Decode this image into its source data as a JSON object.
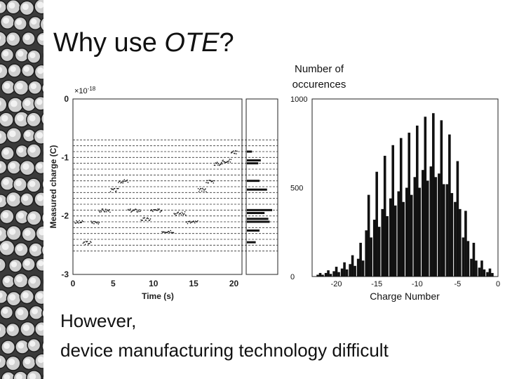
{
  "slide": {
    "title_prefix": "Why use ",
    "title_em": "OTE",
    "title_suffix": "?",
    "footer_line1": "However,",
    "footer_line2": "device manufacturing technology difficult"
  },
  "chart_data": [
    {
      "type": "scatter",
      "xlabel": "Time (s)",
      "ylabel": "Measured charge (C)",
      "y_multiplier": "×10",
      "y_multiplier_exp": "-18",
      "xlim": [
        0,
        21
      ],
      "ylim": [
        -3,
        0
      ],
      "xticks": [
        "0",
        "5",
        "10",
        "15",
        "20"
      ],
      "yticks": [
        "0",
        "-1",
        "-2",
        "-3"
      ],
      "grid_levels": [
        -0.7,
        -0.8,
        -0.9,
        -1.0,
        -1.1,
        -1.2,
        -1.3,
        -1.4,
        -1.5,
        -1.6,
        -1.7,
        -1.8,
        -1.9,
        -2.0,
        -2.1,
        -2.2,
        -2.3,
        -2.4,
        -2.5,
        -2.6
      ],
      "segments": [
        {
          "t": [
            0.2,
            1.2
          ],
          "q": -2.1
        },
        {
          "t": [
            1.2,
            2.2
          ],
          "q": -2.45
        },
        {
          "t": [
            2.2,
            3.2
          ],
          "q": -2.1
        },
        {
          "t": [
            3.2,
            4.6
          ],
          "q": -1.9
        },
        {
          "t": [
            4.6,
            5.6
          ],
          "q": -1.55
        },
        {
          "t": [
            5.6,
            6.8
          ],
          "q": -1.4
        },
        {
          "t": [
            6.8,
            8.4
          ],
          "q": -1.9
        },
        {
          "t": [
            8.4,
            9.6
          ],
          "q": -2.05
        },
        {
          "t": [
            9.6,
            11.0
          ],
          "q": -1.9
        },
        {
          "t": [
            11.0,
            12.5
          ],
          "q": -2.25
        },
        {
          "t": [
            12.5,
            14.0
          ],
          "q": -1.95
        },
        {
          "t": [
            14.0,
            15.5
          ],
          "q": -2.1
        },
        {
          "t": [
            15.5,
            16.5
          ],
          "q": -1.55
        },
        {
          "t": [
            16.5,
            17.5
          ],
          "q": -1.4
        },
        {
          "t": [
            17.5,
            18.5
          ],
          "q": -1.1
        },
        {
          "t": [
            18.5,
            19.6
          ],
          "q": -1.05
        },
        {
          "t": [
            19.6,
            20.4
          ],
          "q": -0.9
        }
      ],
      "side_histogram": [
        {
          "q": -0.9,
          "v": 0.2
        },
        {
          "q": -1.05,
          "v": 0.55
        },
        {
          "q": -1.1,
          "v": 0.45
        },
        {
          "q": -1.4,
          "v": 0.5
        },
        {
          "q": -1.55,
          "v": 0.8
        },
        {
          "q": -1.9,
          "v": 1.0
        },
        {
          "q": -1.95,
          "v": 0.7
        },
        {
          "q": -2.05,
          "v": 0.85
        },
        {
          "q": -2.1,
          "v": 0.9
        },
        {
          "q": -2.25,
          "v": 0.5
        },
        {
          "q": -2.45,
          "v": 0.35
        }
      ]
    },
    {
      "type": "bar",
      "ylabel_line1": "Number of",
      "ylabel_line2": "occurences",
      "xlabel": "Charge Number",
      "xlim": [
        -23,
        0
      ],
      "ylim": [
        0,
        1000
      ],
      "xticks": [
        "-20",
        "-15",
        "-10",
        "-5",
        "0"
      ],
      "yticks": [
        "0",
        "500",
        "1000"
      ],
      "groups": [
        {
          "x": -22,
          "peaks": [
            10,
            20,
            10
          ]
        },
        {
          "x": -21,
          "peaks": [
            20,
            35,
            15
          ]
        },
        {
          "x": -20,
          "peaks": [
            30,
            55,
            25
          ]
        },
        {
          "x": -19,
          "peaks": [
            45,
            80,
            40
          ]
        },
        {
          "x": -18,
          "peaks": [
            70,
            120,
            60
          ]
        },
        {
          "x": -17,
          "peaks": [
            100,
            190,
            90
          ]
        },
        {
          "x": -16,
          "peaks": [
            260,
            460,
            220
          ]
        },
        {
          "x": -15,
          "peaks": [
            320,
            590,
            280
          ]
        },
        {
          "x": -14,
          "peaks": [
            380,
            680,
            340
          ]
        },
        {
          "x": -13,
          "peaks": [
            440,
            740,
            400
          ]
        },
        {
          "x": -12,
          "peaks": [
            480,
            780,
            420
          ]
        },
        {
          "x": -11,
          "peaks": [
            500,
            810,
            460
          ]
        },
        {
          "x": -10,
          "peaks": [
            560,
            850,
            500
          ]
        },
        {
          "x": -9,
          "peaks": [
            600,
            900,
            540
          ]
        },
        {
          "x": -8,
          "peaks": [
            620,
            920,
            560
          ]
        },
        {
          "x": -7,
          "peaks": [
            580,
            880,
            520
          ]
        },
        {
          "x": -6,
          "peaks": [
            520,
            800,
            470
          ]
        },
        {
          "x": -5,
          "peaks": [
            420,
            650,
            380
          ]
        },
        {
          "x": -4,
          "peaks": [
            220,
            370,
            200
          ]
        },
        {
          "x": -3,
          "peaks": [
            100,
            190,
            90
          ]
        },
        {
          "x": -2,
          "peaks": [
            50,
            90,
            40
          ]
        },
        {
          "x": -1,
          "peaks": [
            25,
            45,
            20
          ]
        }
      ]
    }
  ]
}
